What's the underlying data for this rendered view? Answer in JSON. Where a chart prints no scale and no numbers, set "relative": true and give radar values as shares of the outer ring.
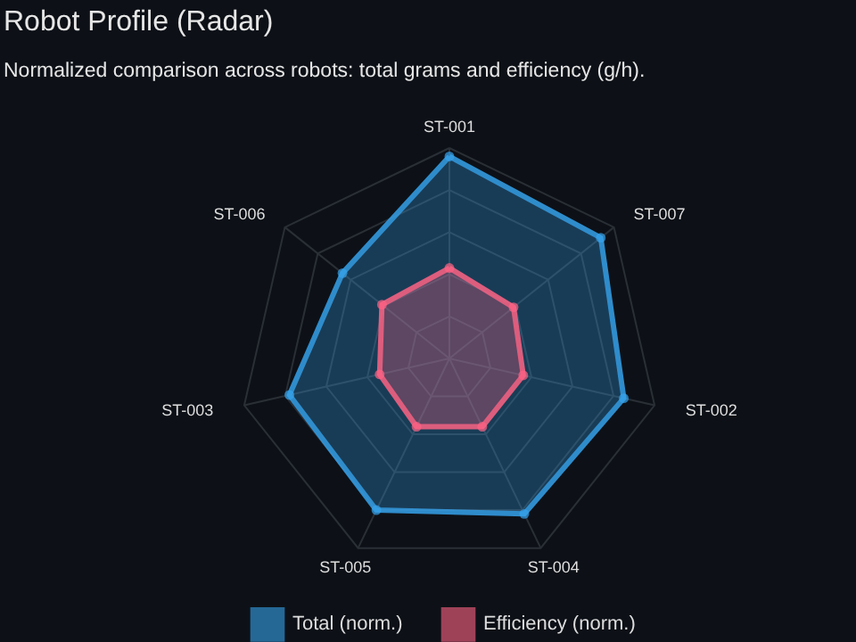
{
  "chart_data": {
    "type": "radar",
    "title": "Robot Profile (Radar)",
    "subtitle": "Normalized comparison across robots: total grams and efficiency (g/h).",
    "categories": [
      "ST-001",
      "ST-007",
      "ST-002",
      "ST-004",
      "ST-005",
      "ST-003",
      "ST-006"
    ],
    "relative": true,
    "series": [
      {
        "name": "Total (norm.)",
        "color": "#36a2eb",
        "values": [
          0.96,
          0.92,
          0.85,
          0.82,
          0.8,
          0.78,
          0.65
        ]
      },
      {
        "name": "Efficiency (norm.)",
        "color": "#ff6384",
        "values": [
          0.43,
          0.39,
          0.36,
          0.36,
          0.36,
          0.34,
          0.41
        ]
      }
    ],
    "grid": true,
    "legend": "bottom",
    "marker": "circle"
  }
}
